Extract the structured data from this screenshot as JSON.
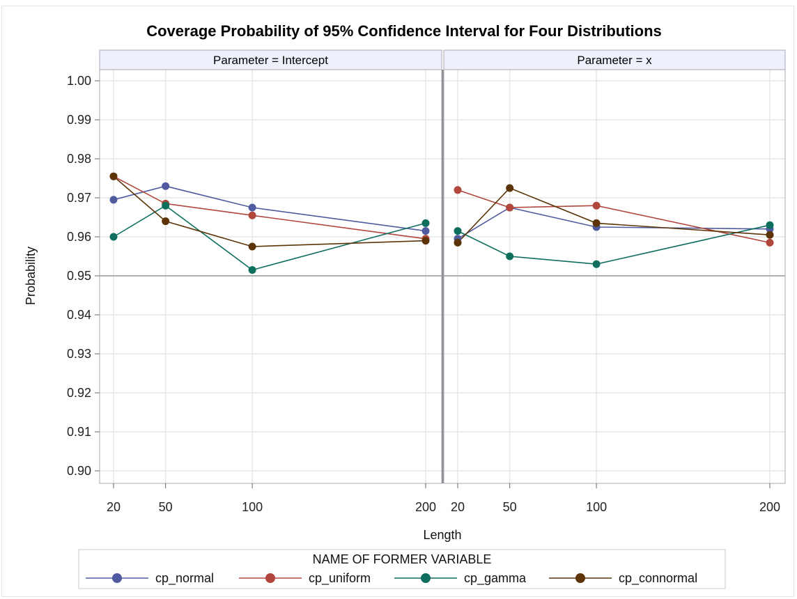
{
  "chart_data": {
    "type": "line",
    "title": "Coverage Probability of 95% Confidence Interval for Four Distributions",
    "xlabel": "Length",
    "ylabel": "Probability",
    "ylim": [
      0.9,
      1.0
    ],
    "y_ticks": [
      "0.90",
      "0.91",
      "0.92",
      "0.93",
      "0.94",
      "0.95",
      "0.96",
      "0.97",
      "0.98",
      "0.99",
      "1.00"
    ],
    "x_ticks": [
      "20",
      "50",
      "100",
      "200"
    ],
    "x": [
      20,
      50,
      100,
      200
    ],
    "reference_line": 0.95,
    "grid": true,
    "legend_title": "NAME OF FORMER VARIABLE",
    "legend_position": "bottom",
    "panels": [
      {
        "label": "Parameter = Intercept",
        "series": [
          {
            "name": "cp_normal",
            "color": "#4f5b9e",
            "values": [
              0.9695,
              0.973,
              0.9675,
              0.9615
            ]
          },
          {
            "name": "cp_uniform",
            "color": "#b0463c",
            "values": [
              0.9755,
              0.9685,
              0.9655,
              0.9595
            ]
          },
          {
            "name": "cp_gamma",
            "color": "#0e6e5e",
            "values": [
              0.96,
              0.968,
              0.9515,
              0.9635
            ]
          },
          {
            "name": "cp_connormal",
            "color": "#5c3408",
            "values": [
              0.9755,
              0.964,
              0.9575,
              0.959
            ]
          }
        ]
      },
      {
        "label": "Parameter = x",
        "series": [
          {
            "name": "cp_normal",
            "color": "#4f5b9e",
            "values": [
              0.9595,
              0.9675,
              0.9625,
              0.962
            ]
          },
          {
            "name": "cp_uniform",
            "color": "#b0463c",
            "values": [
              0.972,
              0.9675,
              0.968,
              0.9585
            ]
          },
          {
            "name": "cp_gamma",
            "color": "#0e6e5e",
            "values": [
              0.9615,
              0.955,
              0.953,
              0.963
            ]
          },
          {
            "name": "cp_connormal",
            "color": "#5c3408",
            "values": [
              0.9585,
              0.9725,
              0.9635,
              0.9605
            ]
          }
        ]
      }
    ]
  }
}
